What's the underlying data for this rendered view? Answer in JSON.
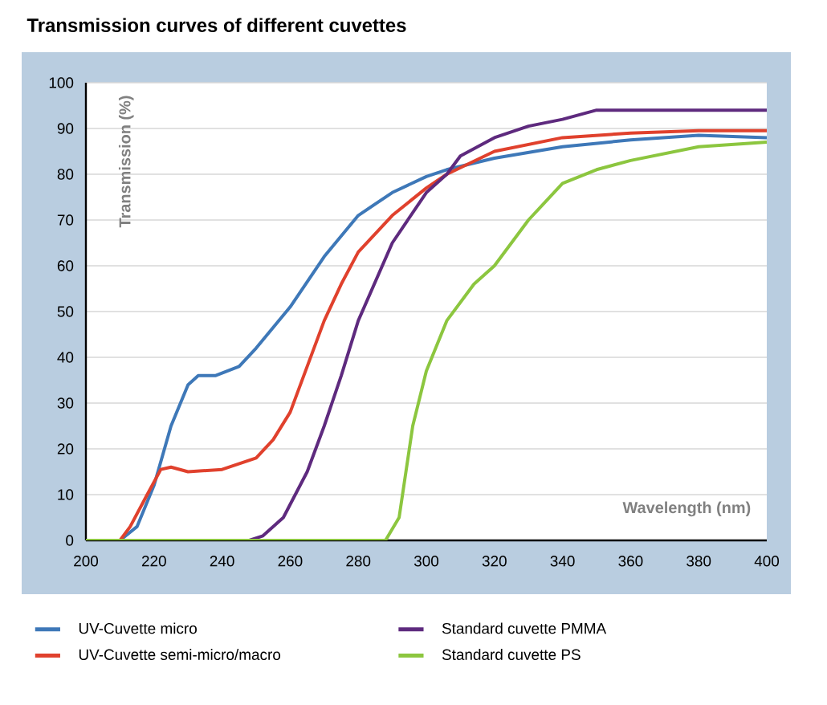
{
  "chart_data": {
    "type": "line",
    "title": "Transmission curves of different cuvettes",
    "xlabel": "Wavelength (nm)",
    "ylabel": "Transmission (%)",
    "xlim": [
      200,
      400
    ],
    "xticks": [
      200,
      220,
      240,
      260,
      280,
      300,
      320,
      340,
      360,
      380,
      400
    ],
    "ylim": [
      0,
      100
    ],
    "yticks": [
      0,
      10,
      20,
      30,
      40,
      50,
      60,
      70,
      80,
      90,
      100
    ],
    "grid": "y",
    "legend": "bottom",
    "marker": "none",
    "line_style": "solid",
    "series": [
      {
        "name": "UV-Cuvette micro",
        "color": "#3e78b8",
        "x": [
          200,
          210,
          215,
          220,
          225,
          230,
          233,
          238,
          245,
          250,
          260,
          270,
          280,
          290,
          300,
          306,
          320,
          340,
          360,
          380,
          400
        ],
        "values": [
          0,
          0,
          3,
          12,
          25,
          34,
          36,
          36,
          38,
          42,
          51,
          62,
          71,
          76,
          79.5,
          81,
          83.5,
          86,
          87.5,
          88.5,
          88
        ]
      },
      {
        "name": "UV-Cuvette semi-micro/macro",
        "color": "#e0412d",
        "x": [
          200,
          210,
          213,
          218,
          222,
          225,
          230,
          240,
          250,
          255,
          260,
          265,
          270,
          275,
          280,
          290,
          300,
          306,
          320,
          340,
          360,
          380,
          400
        ],
        "values": [
          0,
          0,
          3,
          10,
          15.5,
          16,
          15,
          15.5,
          18,
          22,
          28,
          38,
          48,
          56,
          63,
          71,
          77,
          80,
          85,
          88,
          89,
          89.5,
          89.5
        ]
      },
      {
        "name": "Standard cuvette PMMA",
        "color": "#5e2a7e",
        "x": [
          200,
          248,
          252,
          258,
          265,
          270,
          275,
          280,
          290,
          300,
          306,
          310,
          320,
          330,
          340,
          350,
          360,
          380,
          400
        ],
        "values": [
          0,
          0,
          1,
          5,
          15,
          25,
          36,
          48,
          65,
          76,
          80,
          84,
          88,
          90.5,
          92,
          94,
          94,
          94,
          94
        ]
      },
      {
        "name": "Standard cuvette PS",
        "color": "#8cc63f",
        "x": [
          200,
          288,
          292,
          296,
          300,
          306,
          314,
          320,
          330,
          340,
          350,
          360,
          380,
          400
        ],
        "values": [
          0,
          0,
          5,
          25,
          37,
          48,
          56,
          60,
          70,
          78,
          81,
          83,
          86,
          87
        ]
      }
    ]
  }
}
